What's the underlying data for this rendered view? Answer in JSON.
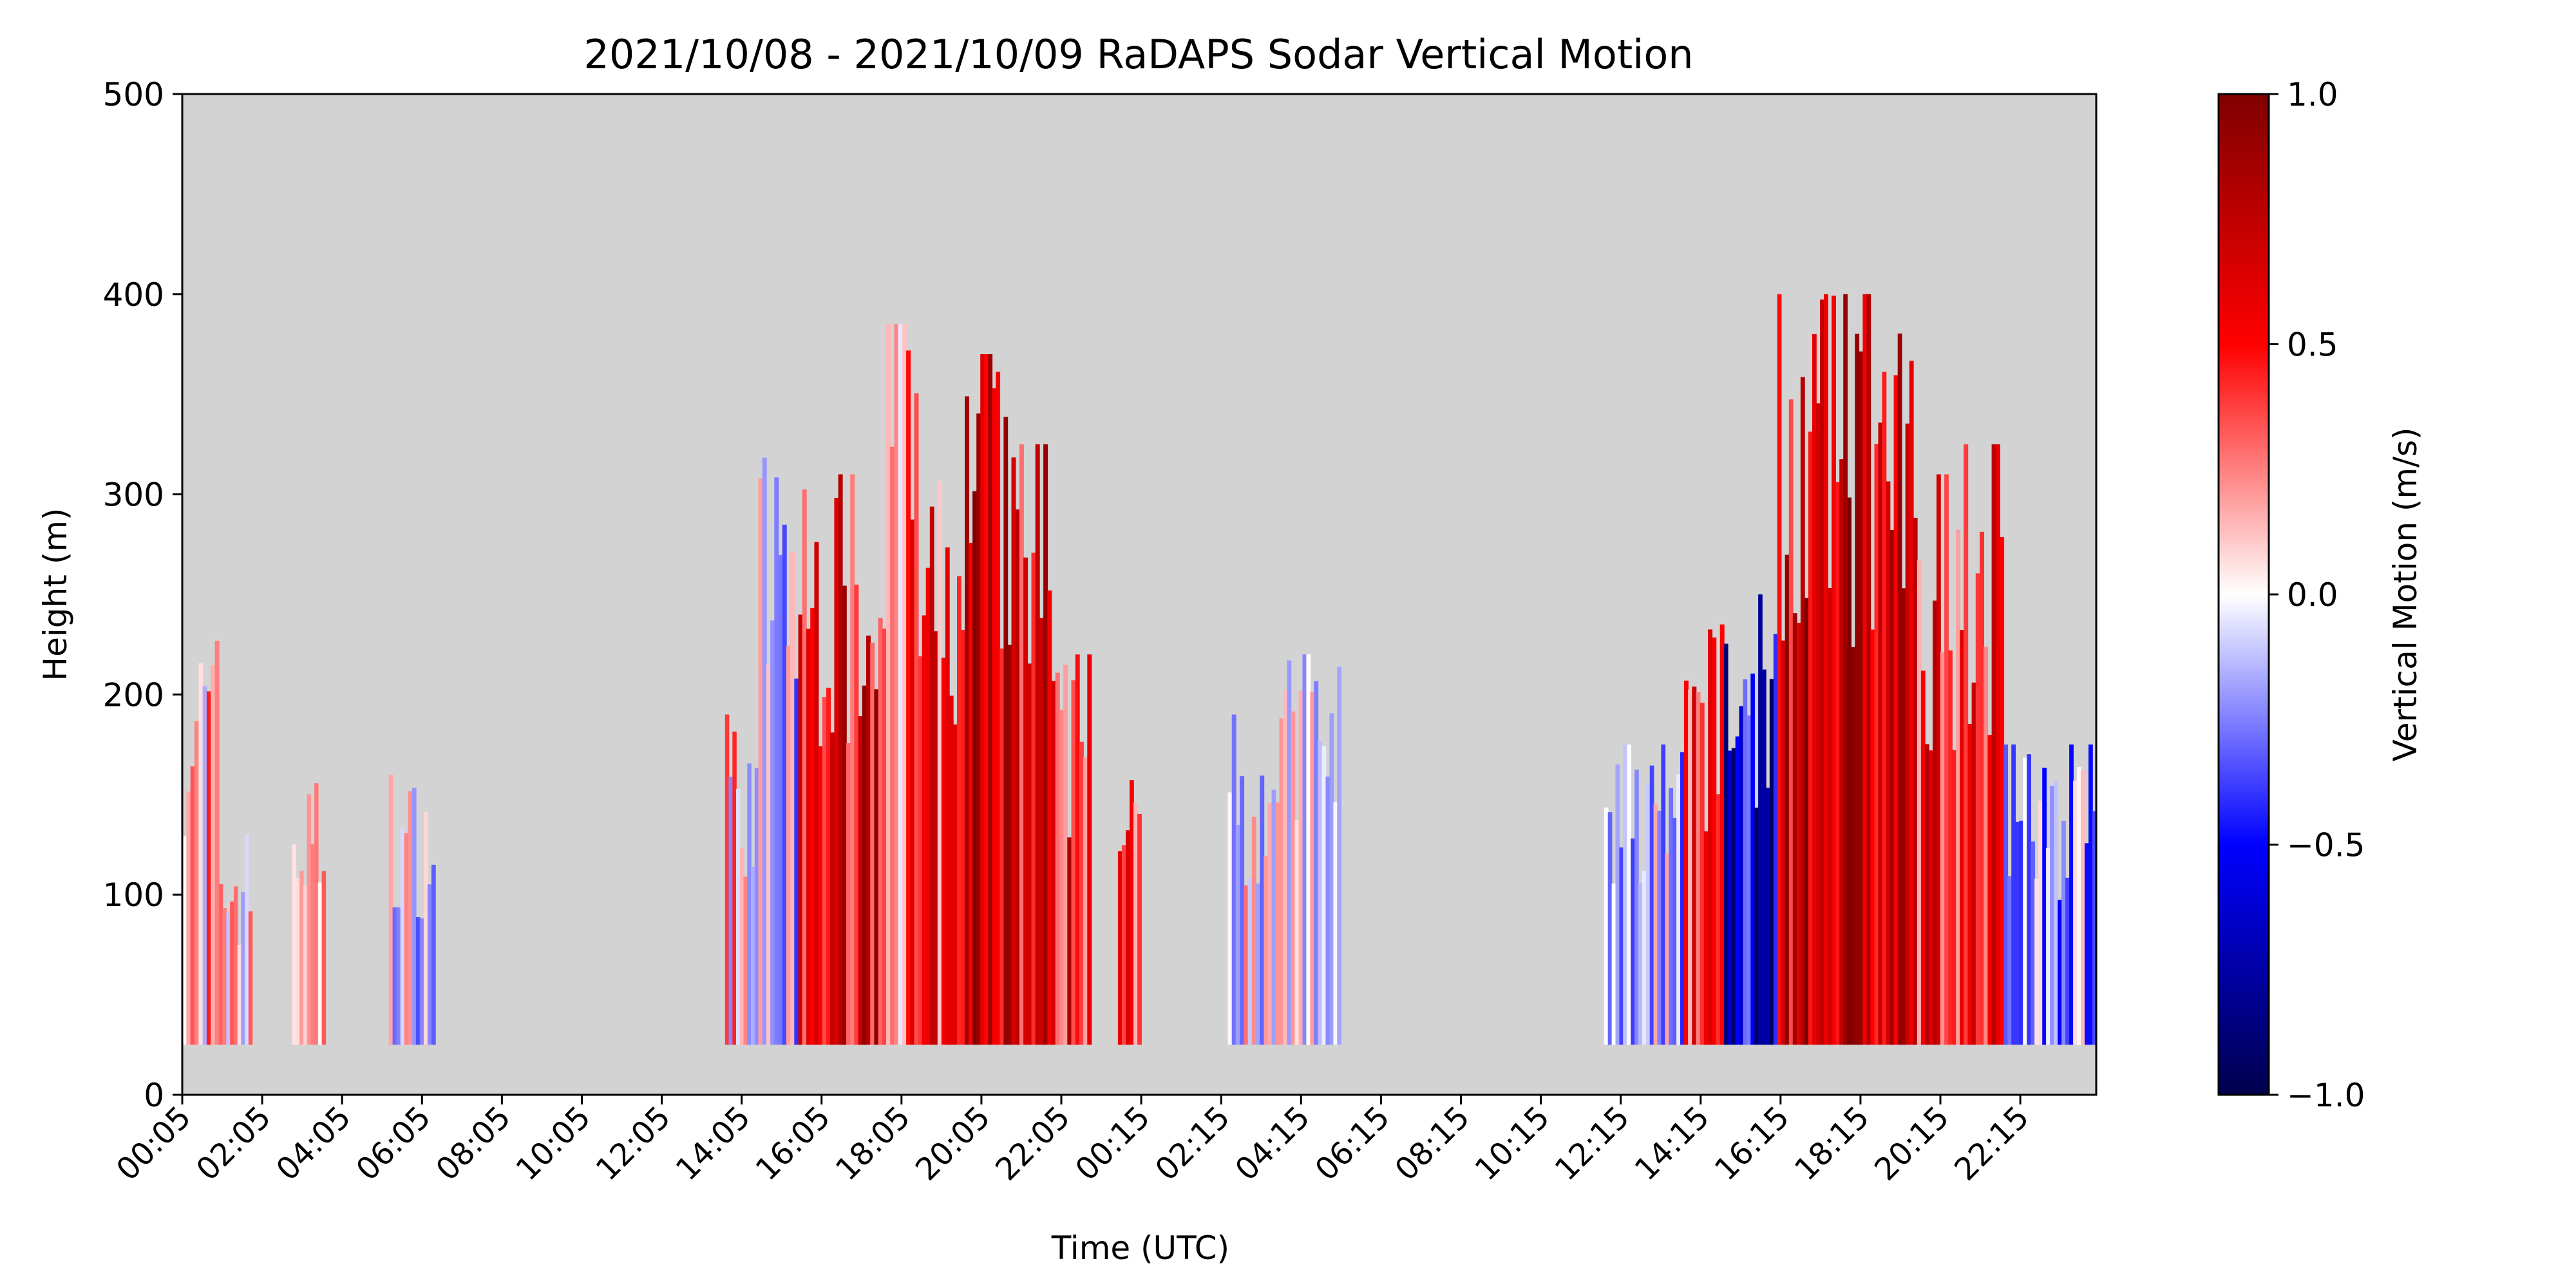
{
  "chart_data": {
    "type": "heatmap",
    "title": "2021/10/08 - 2021/10/09 RaDAPS Sodar Vertical Motion",
    "xlabel": "Time (UTC)",
    "ylabel": "Height (m)",
    "xlim": [
      "2021/10/08 00:05",
      "2021/10/09 23:59"
    ],
    "ylim": [
      0,
      500
    ],
    "x_ticks": [
      "00:05",
      "02:05",
      "04:05",
      "06:05",
      "08:05",
      "10:05",
      "12:05",
      "14:05",
      "16:05",
      "18:05",
      "20:05",
      "22:05",
      "00:15",
      "02:15",
      "04:15",
      "06:15",
      "08:15",
      "10:15",
      "12:15",
      "14:15",
      "16:15",
      "18:15",
      "20:15",
      "22:15"
    ],
    "y_ticks": [
      0,
      100,
      200,
      300,
      400,
      500
    ],
    "colorbar": {
      "label": "Vertical Motion (m/s)",
      "range": [
        -1.0,
        1.0
      ],
      "ticks": [
        "1.0",
        "0.5",
        "0.0",
        "−0.5",
        "−1.0"
      ],
      "colormap": "seismic",
      "stops": [
        "#00004c",
        "#0000ff",
        "#ffffff",
        "#ff0000",
        "#7f0000"
      ]
    },
    "background_color": "#d3d3d3",
    "grid": false,
    "data_bottom_height_m": 25,
    "segments": [
      {
        "start": "2021/10/08 00:05",
        "end": "2021/10/08 01:00",
        "top_m": 235,
        "mean_motion": 0.15
      },
      {
        "start": "2021/10/08 01:00",
        "end": "2021/10/08 01:50",
        "top_m": 130,
        "mean_motion": 0.02
      },
      {
        "start": "2021/10/08 02:50",
        "end": "2021/10/08 03:40",
        "top_m": 160,
        "mean_motion": 0.12
      },
      {
        "start": "2021/10/08 05:15",
        "end": "2021/10/08 06:25",
        "top_m": 160,
        "mean_motion": -0.05
      },
      {
        "start": "2021/10/08 13:40",
        "end": "2021/10/08 14:30",
        "top_m": 190,
        "mean_motion": 0.1
      },
      {
        "start": "2021/10/08 14:30",
        "end": "2021/10/08 15:30",
        "top_m": 325,
        "mean_motion": -0.15
      },
      {
        "start": "2021/10/08 15:30",
        "end": "2021/10/08 16:30",
        "top_m": 310,
        "mean_motion": 0.5
      },
      {
        "start": "2021/10/08 16:30",
        "end": "2021/10/08 17:30",
        "top_m": 310,
        "mean_motion": 0.6
      },
      {
        "start": "2021/10/08 17:30",
        "end": "2021/10/08 18:30",
        "top_m": 385,
        "mean_motion": 0.3
      },
      {
        "start": "2021/10/08 18:30",
        "end": "2021/10/08 19:40",
        "top_m": 310,
        "mean_motion": 0.4
      },
      {
        "start": "2021/10/08 19:40",
        "end": "2021/10/08 20:50",
        "top_m": 370,
        "mean_motion": 0.75
      },
      {
        "start": "2021/10/08 20:50",
        "end": "2021/10/08 21:50",
        "top_m": 325,
        "mean_motion": 0.6
      },
      {
        "start": "2021/10/08 21:50",
        "end": "2021/10/08 22:50",
        "top_m": 220,
        "mean_motion": 0.5
      },
      {
        "start": "2021/10/08 23:30",
        "end": "2021/10/09 00:05",
        "top_m": 160,
        "mean_motion": 0.45
      },
      {
        "start": "2021/10/09 02:15",
        "end": "2021/10/09 03:15",
        "top_m": 190,
        "mean_motion": 0.02
      },
      {
        "start": "2021/10/09 03:15",
        "end": "2021/10/09 05:05",
        "top_m": 220,
        "mean_motion": -0.05
      },
      {
        "start": "2021/10/09 11:40",
        "end": "2021/10/09 13:40",
        "top_m": 175,
        "mean_motion": -0.1
      },
      {
        "start": "2021/10/09 13:40",
        "end": "2021/10/09 14:40",
        "top_m": 235,
        "mean_motion": 0.45
      },
      {
        "start": "2021/10/09 14:40",
        "end": "2021/10/09 16:00",
        "top_m": 250,
        "mean_motion": -0.6
      },
      {
        "start": "2021/10/09 16:00",
        "end": "2021/10/09 17:10",
        "top_m": 400,
        "mean_motion": 0.7
      },
      {
        "start": "2021/10/09 17:10",
        "end": "2021/10/09 18:20",
        "top_m": 400,
        "mean_motion": 0.8
      },
      {
        "start": "2021/10/09 18:20",
        "end": "2021/10/09 19:30",
        "top_m": 385,
        "mean_motion": 0.6
      },
      {
        "start": "2021/10/09 19:30",
        "end": "2021/10/09 20:40",
        "top_m": 310,
        "mean_motion": 0.5
      },
      {
        "start": "2021/10/09 20:40",
        "end": "2021/10/09 21:40",
        "top_m": 325,
        "mean_motion": 0.45
      },
      {
        "start": "2021/10/09 21:40",
        "end": "2021/10/09 23:59",
        "top_m": 175,
        "mean_motion": -0.15
      }
    ]
  }
}
